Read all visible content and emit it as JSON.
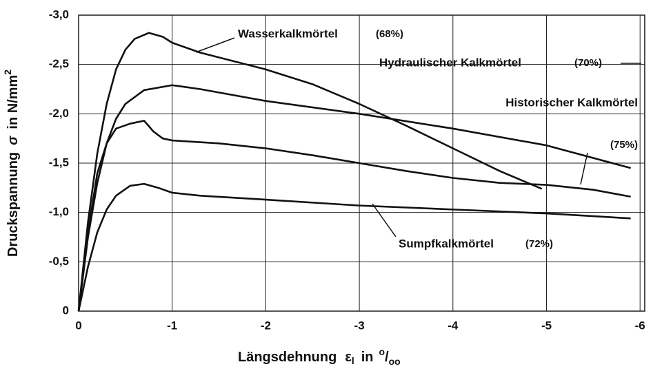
{
  "chart_data": {
    "type": "line",
    "x_label": [
      "Längsdehnung",
      "ε",
      "l",
      "in",
      "o",
      "/",
      "oo"
    ],
    "y_label": [
      "Druckspannung",
      "σ",
      "in N/mm",
      "2"
    ],
    "xlim": [
      0,
      -6.05
    ],
    "ylim": [
      0,
      -3
    ],
    "xticks": [
      0,
      -1,
      -2,
      -3,
      -4,
      -5,
      -6
    ],
    "yticks": [
      {
        "value": 0,
        "label": "0"
      },
      {
        "value": -0.5,
        "label": "-0,5"
      },
      {
        "value": -1,
        "label": "-1,0"
      },
      {
        "value": -1.5,
        "label": "-1,5"
      },
      {
        "value": -2,
        "label": "-2,0"
      },
      {
        "value": -2.5,
        "label": "-2,5"
      },
      {
        "value": -3,
        "label": "-3,0"
      }
    ],
    "grid": true,
    "series": [
      {
        "name": "Wasserkalkmörtel",
        "note": "(68%)",
        "color": "#111111",
        "x": [
          0,
          -0.1,
          -0.2,
          -0.3,
          -0.4,
          -0.5,
          -0.6,
          -0.75,
          -0.9,
          -1.0,
          -1.3,
          -2,
          -2.5,
          -3,
          -3.5,
          -4,
          -4.5,
          -4.95
        ],
        "values": [
          0,
          -0.9,
          -1.6,
          -2.1,
          -2.45,
          -2.65,
          -2.76,
          -2.82,
          -2.78,
          -2.72,
          -2.62,
          -2.45,
          -2.3,
          -2.1,
          -1.88,
          -1.65,
          -1.42,
          -1.24
        ]
      },
      {
        "name": "Hydraulischer Kalkmörtel",
        "note": "(70%)",
        "color": "#111111",
        "x": [
          0,
          -0.1,
          -0.2,
          -0.3,
          -0.4,
          -0.5,
          -0.7,
          -1.0,
          -1.3,
          -2,
          -3,
          -4,
          -5,
          -5.9
        ],
        "values": [
          0,
          -0.75,
          -1.3,
          -1.7,
          -1.95,
          -2.1,
          -2.24,
          -2.29,
          -2.25,
          -2.13,
          -2.0,
          -1.85,
          -1.68,
          -1.45
        ]
      },
      {
        "name": "Historischer Kalkmörtel",
        "note": "(75%)",
        "color": "#111111",
        "x": [
          0,
          -0.1,
          -0.2,
          -0.3,
          -0.4,
          -0.55,
          -0.7,
          -0.8,
          -0.9,
          -1,
          -1.5,
          -2,
          -2.5,
          -3,
          -3.5,
          -4,
          -4.5,
          -5,
          -5.5,
          -5.9
        ],
        "values": [
          0,
          -0.8,
          -1.4,
          -1.7,
          -1.85,
          -1.9,
          -1.93,
          -1.82,
          -1.75,
          -1.73,
          -1.7,
          -1.65,
          -1.58,
          -1.5,
          -1.42,
          -1.35,
          -1.3,
          -1.28,
          -1.23,
          -1.16
        ]
      },
      {
        "name": "Sumpfkalkmörtel",
        "note": "(72%)",
        "color": "#111111",
        "x": [
          0,
          -0.1,
          -0.2,
          -0.3,
          -0.4,
          -0.55,
          -0.7,
          -0.85,
          -1,
          -1.3,
          -2,
          -3,
          -4,
          -5,
          -5.9
        ],
        "values": [
          0,
          -0.45,
          -0.8,
          -1.03,
          -1.17,
          -1.27,
          -1.29,
          -1.25,
          -1.2,
          -1.17,
          -1.13,
          -1.07,
          -1.03,
          -0.99,
          -0.94
        ]
      }
    ]
  }
}
